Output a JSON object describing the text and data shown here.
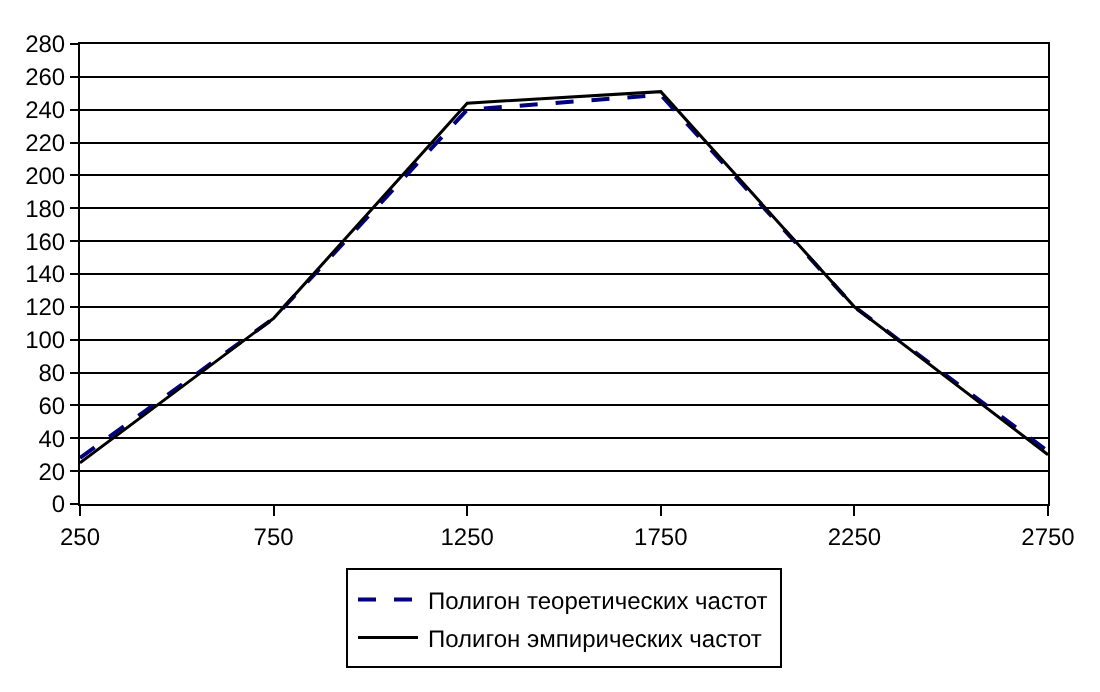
{
  "chart_data": {
    "type": "line",
    "x": [
      250,
      750,
      1250,
      1750,
      2250,
      2750
    ],
    "series": [
      {
        "name": "Полигон теоретических частот",
        "color": "#000080",
        "line_style": "dashed",
        "values": [
          28,
          113,
          240,
          249,
          120,
          32
        ]
      },
      {
        "name": "Полигон эмпирических частот",
        "color": "#000000",
        "line_style": "solid",
        "values": [
          25,
          113,
          244,
          251,
          120,
          30
        ]
      }
    ],
    "xlim": [
      250,
      2750
    ],
    "xticks": [
      250,
      750,
      1250,
      1750,
      2250,
      2750
    ],
    "ylim": [
      0,
      280
    ],
    "yticks": [
      0,
      20,
      40,
      60,
      80,
      100,
      120,
      140,
      160,
      180,
      200,
      220,
      240,
      260,
      280
    ],
    "grid": "y",
    "legend": "bottom",
    "marker": "none"
  }
}
